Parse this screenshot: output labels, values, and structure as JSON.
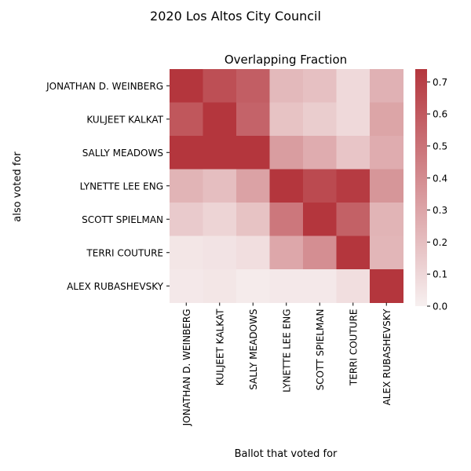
{
  "chart_data": {
    "type": "heatmap",
    "suptitle": "2020 Los Altos City Council",
    "title": "Overlapping Fraction",
    "xlabel": "Ballot that voted for",
    "ylabel": "also voted for",
    "x_categories": [
      "JONATHAN D. WEINBERG",
      "KULJEET KALKAT",
      "SALLY MEADOWS",
      "LYNETTE LEE ENG",
      "SCOTT SPIELMAN",
      "TERRI COUTURE",
      "ALEX RUBASHEVSKY"
    ],
    "y_categories": [
      "JONATHAN D. WEINBERG",
      "KULJEET KALKAT",
      "SALLY MEADOWS",
      "LYNETTE LEE ENG",
      "SCOTT SPIELMAN",
      "TERRI COUTURE",
      "ALEX RUBASHEVSKY"
    ],
    "values": [
      [
        0.74,
        0.64,
        0.58,
        0.22,
        0.19,
        0.09,
        0.25
      ],
      [
        0.61,
        0.74,
        0.56,
        0.18,
        0.14,
        0.09,
        0.3
      ],
      [
        0.74,
        0.74,
        0.74,
        0.33,
        0.27,
        0.17,
        0.27
      ],
      [
        0.24,
        0.2,
        0.31,
        0.74,
        0.66,
        0.72,
        0.36
      ],
      [
        0.15,
        0.11,
        0.18,
        0.48,
        0.74,
        0.57,
        0.24
      ],
      [
        0.04,
        0.05,
        0.07,
        0.29,
        0.39,
        0.74,
        0.23
      ],
      [
        0.03,
        0.04,
        0.02,
        0.03,
        0.03,
        0.07,
        0.74
      ]
    ],
    "colorbar": {
      "vmin": 0.0,
      "vmax": 0.74,
      "ticks": [
        0.0,
        0.1,
        0.2,
        0.3,
        0.4,
        0.5,
        0.6,
        0.7
      ],
      "tick_labels": [
        "0.0",
        "0.1",
        "0.2",
        "0.3",
        "0.4",
        "0.5",
        "0.6",
        "0.7"
      ],
      "color_low": "#f7f0f0",
      "color_high": "#b4363d"
    },
    "grid": false
  }
}
